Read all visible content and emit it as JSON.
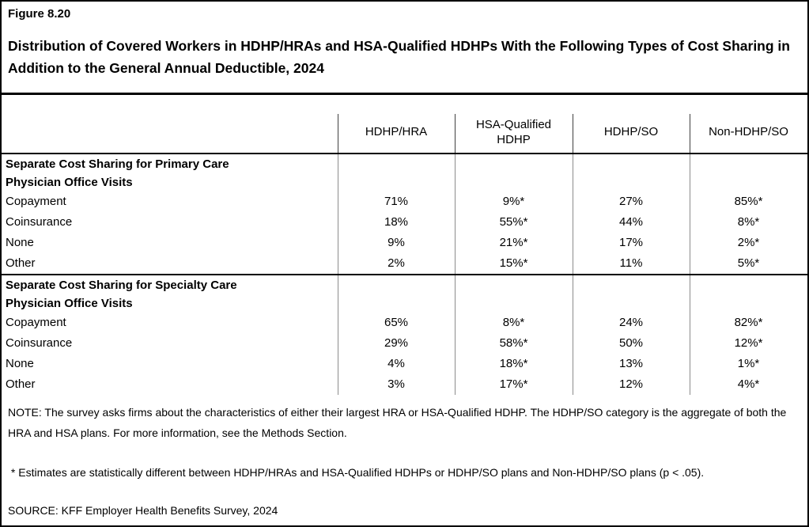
{
  "figure": {
    "label": "Figure 8.20",
    "title": "Distribution of Covered Workers in HDHP/HRAs and HSA-Qualified HDHPs With the Following Types of Cost Sharing in Addition to the General Annual Deductible, 2024"
  },
  "table": {
    "columns": [
      "HDHP/HRA",
      "HSA-Qualified HDHP",
      "HDHP/SO",
      "Non-HDHP/SO"
    ],
    "sections": [
      {
        "header_lines": [
          "Separate Cost Sharing for Primary Care",
          "Physician Office Visits"
        ],
        "rows": [
          {
            "label": "Copayment",
            "values": [
              "71%",
              "9%*",
              "27%",
              "85%*"
            ]
          },
          {
            "label": "Coinsurance",
            "values": [
              "18%",
              "55%*",
              "44%",
              "8%*"
            ]
          },
          {
            "label": "None",
            "values": [
              "9%",
              "21%*",
              "17%",
              "2%*"
            ]
          },
          {
            "label": "Other",
            "values": [
              "2%",
              "15%*",
              "11%",
              "5%*"
            ]
          }
        ]
      },
      {
        "header_lines": [
          "Separate Cost Sharing for Specialty Care",
          "Physician Office Visits"
        ],
        "rows": [
          {
            "label": "Copayment",
            "values": [
              "65%",
              "8%*",
              "24%",
              "82%*"
            ]
          },
          {
            "label": "Coinsurance",
            "values": [
              "29%",
              "58%*",
              "50%",
              "12%*"
            ]
          },
          {
            "label": "None",
            "values": [
              "4%",
              "18%*",
              "13%",
              "1%*"
            ]
          },
          {
            "label": "Other",
            "values": [
              "3%",
              "17%*",
              "12%",
              "4%*"
            ]
          }
        ]
      }
    ]
  },
  "notes": {
    "note": "NOTE: The survey asks firms about the characteristics of either their largest HRA or HSA-Qualified HDHP. The HDHP/SO category is the aggregate of both the HRA and HSA plans. For more information, see the Methods Section.",
    "asterisk": " * Estimates are statistically different between HDHP/HRAs and HSA-Qualified HDHPs or HDHP/SO plans and Non-HDHP/SO plans (p < .05).",
    "source": "SOURCE: KFF Employer Health Benefits Survey, 2024"
  },
  "colors": {
    "text": "#000000",
    "background": "#ffffff",
    "border": "#000000",
    "grid_line_body": "#8c8c8c",
    "grid_line_header": "#404040"
  }
}
